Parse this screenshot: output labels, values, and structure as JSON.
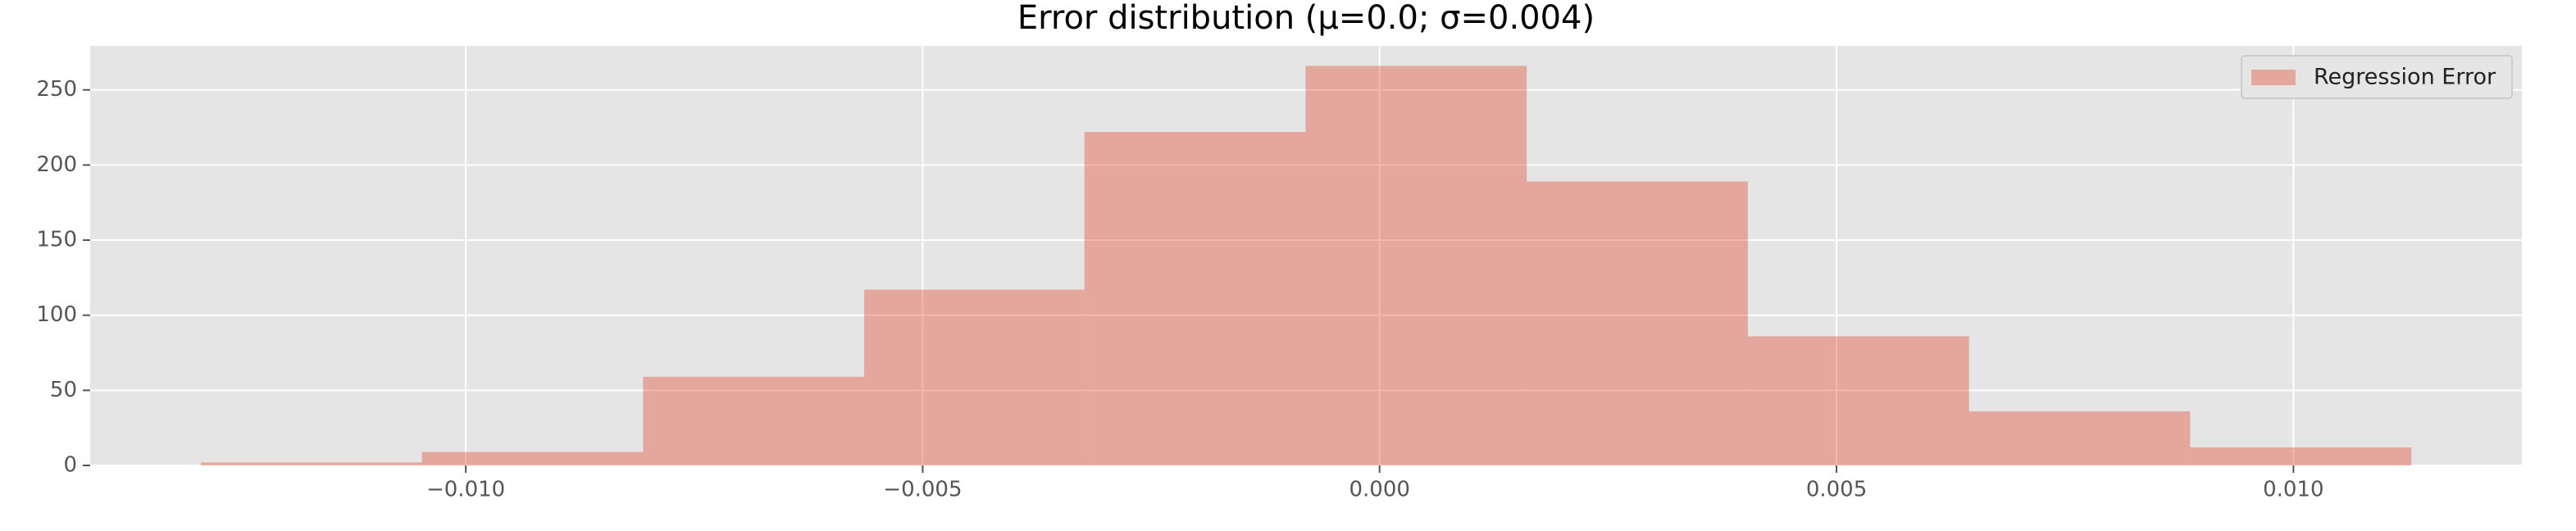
{
  "chart_data": {
    "type": "histogram",
    "title": "Error distribution (μ=0.0; σ=0.004)",
    "bins": [
      -0.0129,
      -0.01048,
      -0.00806,
      -0.00564,
      -0.00323,
      -0.00081,
      0.00161,
      0.00403,
      0.00645,
      0.00887,
      0.01129
    ],
    "series": [
      {
        "name": "Regression Error",
        "color": "#E24A33",
        "values": [
          2,
          9,
          59,
          117,
          222,
          266,
          189,
          86,
          36,
          12
        ]
      }
    ],
    "alpha": 0.4,
    "xlim": [
      -0.01411,
      0.0125
    ],
    "ylim": [
      0,
      279.3
    ],
    "xticks": [
      {
        "value": -0.01,
        "label": "−0.010"
      },
      {
        "value": -0.005,
        "label": "−0.005"
      },
      {
        "value": 0,
        "label": "0.000"
      },
      {
        "value": 0.005,
        "label": "0.005"
      },
      {
        "value": 0.01,
        "label": "0.010"
      }
    ],
    "yticks": [
      0,
      50,
      100,
      150,
      200,
      250
    ],
    "grid": true,
    "legend": "upper right"
  }
}
